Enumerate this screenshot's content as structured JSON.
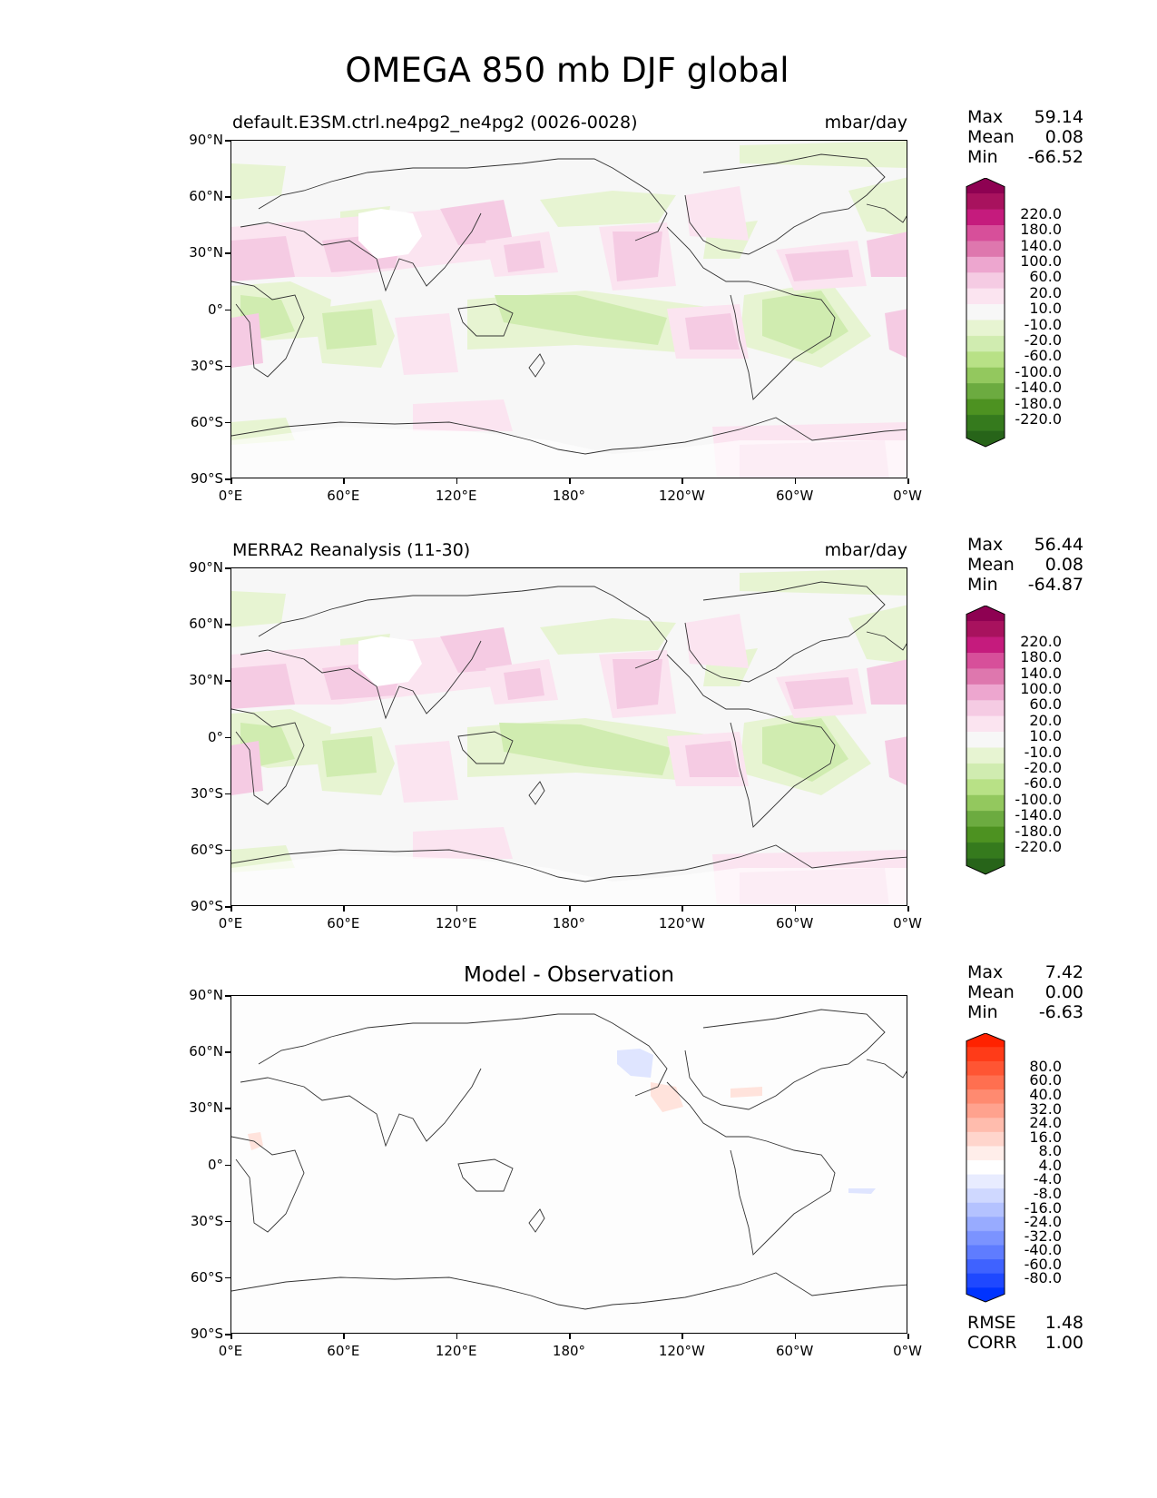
{
  "figure": {
    "title": "OMEGA 850 mb DJF global"
  },
  "axes": {
    "yticks": [
      "90°N",
      "60°N",
      "30°N",
      "0°",
      "30°S",
      "60°S",
      "90°S"
    ],
    "xticks": [
      "0°E",
      "60°E",
      "120°E",
      "180°",
      "120°W",
      "60°W",
      "0°W"
    ]
  },
  "panels": [
    {
      "title": "default.E3SM.ctrl.ne4pg2_ne4pg2 (0026-0028)",
      "units": "mbar/day",
      "stats": {
        "max_label": "Max",
        "max": "59.14",
        "mean_label": "Mean",
        "mean": "0.08",
        "min_label": "Min",
        "min": "-66.52"
      }
    },
    {
      "title": "MERRA2 Reanalysis (11-30)",
      "units": "mbar/day",
      "stats": {
        "max_label": "Max",
        "max": "56.44",
        "mean_label": "Mean",
        "mean": "0.08",
        "min_label": "Min",
        "min": "-64.87"
      }
    },
    {
      "title": "Model - Observation",
      "units": "",
      "stats": {
        "max_label": "Max",
        "max": "7.42",
        "mean_label": "Mean",
        "mean": "0.00",
        "min_label": "Min",
        "min": "-6.63"
      },
      "error": {
        "rmse_label": "RMSE",
        "rmse": "1.48",
        "corr_label": "CORR",
        "corr": "1.00"
      }
    }
  ],
  "colorbars": {
    "field": {
      "labels": [
        "220.0",
        "180.0",
        "140.0",
        "100.0",
        "60.0",
        "20.0",
        "10.0",
        "-10.0",
        "-20.0",
        "-60.0",
        "-100.0",
        "-140.0",
        "-180.0",
        "-220.0"
      ],
      "colors": [
        "#8e0152",
        "#a8125e",
        "#c51b7d",
        "#d74f9a",
        "#de77ae",
        "#eda6cf",
        "#f5cbe3",
        "#fbe4f0",
        "#f7f7f7",
        "#e7f4d2",
        "#d0ecb0",
        "#b8e186",
        "#93c85e",
        "#6cab40",
        "#4d9221",
        "#357a1d",
        "#276419"
      ]
    },
    "diff": {
      "labels": [
        "80.0",
        "60.0",
        "40.0",
        "32.0",
        "24.0",
        "16.0",
        "8.0",
        "4.0",
        "-4.0",
        "-8.0",
        "-16.0",
        "-24.0",
        "-32.0",
        "-40.0",
        "-60.0",
        "-80.0"
      ],
      "colors": [
        "#ff2200",
        "#ff3b18",
        "#ff5533",
        "#ff6f50",
        "#ff8a70",
        "#ffa28e",
        "#ffbcad",
        "#ffd5cc",
        "#ffeeea",
        "#ffffff",
        "#e8ecff",
        "#cfd8ff",
        "#b4c2ff",
        "#98abff",
        "#7b93ff",
        "#5f7cff",
        "#3f62ff",
        "#1f48ff",
        "#0033ff"
      ]
    }
  }
}
